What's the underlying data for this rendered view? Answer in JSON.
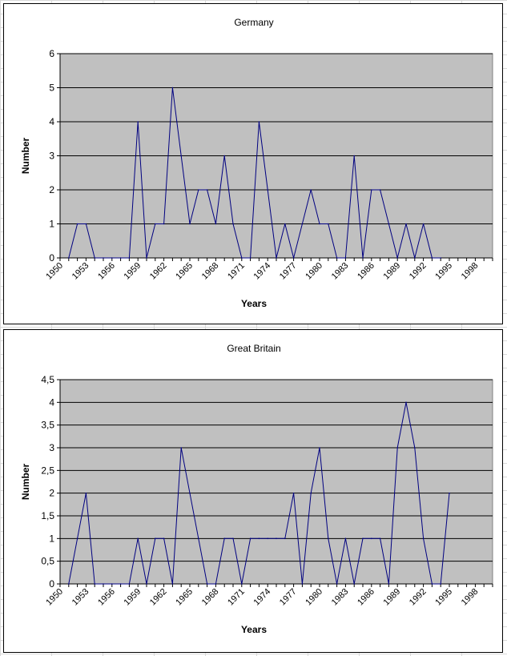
{
  "chart_data": [
    {
      "type": "line",
      "title": "Germany",
      "xlabel": "Years",
      "ylabel": "Number",
      "ylim": [
        0,
        6
      ],
      "yticks": [
        "0",
        "1",
        "2",
        "3",
        "4",
        "5",
        "6"
      ],
      "xticks": [
        "1950",
        "1953",
        "1956",
        "1959",
        "1962",
        "1965",
        "1968",
        "1971",
        "1974",
        "1977",
        "1980",
        "1983",
        "1986",
        "1989",
        "1992",
        "1995",
        "1998"
      ],
      "xlim": [
        1950,
        2000
      ],
      "grid": true,
      "plot_background": "#c0c0c0",
      "line_color": "#000080",
      "series": [
        {
          "x": [
            1951,
            1952,
            1953,
            1954,
            1955,
            1956,
            1957,
            1958,
            1959,
            1960,
            1961,
            1962,
            1963,
            1964,
            1965,
            1966,
            1967,
            1968,
            1969,
            1970,
            1971,
            1972,
            1973,
            1974,
            1975,
            1976,
            1977,
            1978,
            1979,
            1980,
            1981,
            1982,
            1983,
            1984,
            1985,
            1986,
            1987,
            1988,
            1989,
            1990,
            1991,
            1992,
            1993,
            1994
          ],
          "values": [
            0,
            1,
            1,
            0,
            0,
            0,
            0,
            0,
            4,
            0,
            1,
            1,
            5,
            3,
            1,
            2,
            2,
            1,
            3,
            1,
            0,
            0,
            4,
            2,
            0,
            1,
            0,
            1,
            2,
            1,
            1,
            0,
            0,
            3,
            0,
            2,
            2,
            1,
            0,
            1,
            0,
            1,
            0,
            0
          ]
        }
      ]
    },
    {
      "type": "line",
      "title": "Great Britain",
      "xlabel": "Years",
      "ylabel": "Number",
      "ylim": [
        0,
        4.5
      ],
      "yticks": [
        "0",
        "0,5",
        "1",
        "1,5",
        "2",
        "2,5",
        "3",
        "3,5",
        "4",
        "4,5"
      ],
      "xticks": [
        "1950",
        "1953",
        "1956",
        "1959",
        "1962",
        "1965",
        "1968",
        "1971",
        "1974",
        "1977",
        "1980",
        "1983",
        "1986",
        "1989",
        "1992",
        "1995",
        "1998"
      ],
      "xlim": [
        1950,
        2000
      ],
      "grid": true,
      "plot_background": "#c0c0c0",
      "line_color": "#000080",
      "series": [
        {
          "x": [
            1951,
            1952,
            1953,
            1954,
            1955,
            1956,
            1957,
            1958,
            1959,
            1960,
            1961,
            1962,
            1963,
            1964,
            1965,
            1966,
            1967,
            1968,
            1969,
            1970,
            1971,
            1972,
            1973,
            1974,
            1975,
            1976,
            1977,
            1978,
            1979,
            1980,
            1981,
            1982,
            1983,
            1984,
            1985,
            1986,
            1987,
            1988,
            1989,
            1990,
            1991,
            1992,
            1993,
            1994,
            1995
          ],
          "values": [
            0,
            1,
            2,
            0,
            0,
            0,
            0,
            0,
            1,
            0,
            1,
            1,
            0,
            3,
            2,
            1,
            0,
            0,
            1,
            1,
            0,
            1,
            1,
            1,
            1,
            1,
            2,
            0,
            2,
            3,
            1,
            0,
            1,
            0,
            1,
            1,
            1,
            0,
            3,
            4,
            3,
            1,
            0,
            0,
            2
          ]
        }
      ]
    }
  ]
}
